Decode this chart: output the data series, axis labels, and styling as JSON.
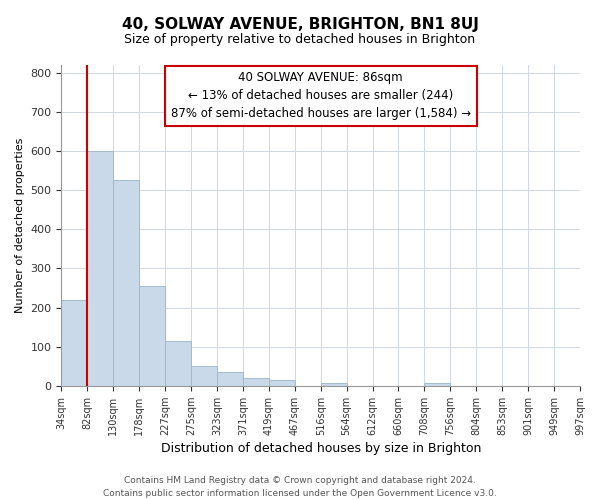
{
  "title": "40, SOLWAY AVENUE, BRIGHTON, BN1 8UJ",
  "subtitle": "Size of property relative to detached houses in Brighton",
  "xlabel": "Distribution of detached houses by size in Brighton",
  "ylabel": "Number of detached properties",
  "bins": [
    "34sqm",
    "82sqm",
    "130sqm",
    "178sqm",
    "227sqm",
    "275sqm",
    "323sqm",
    "371sqm",
    "419sqm",
    "467sqm",
    "516sqm",
    "564sqm",
    "612sqm",
    "660sqm",
    "708sqm",
    "756sqm",
    "804sqm",
    "853sqm",
    "901sqm",
    "949sqm",
    "997sqm"
  ],
  "bar_heights": [
    220,
    600,
    525,
    255,
    115,
    50,
    35,
    20,
    15,
    0,
    8,
    0,
    0,
    0,
    8,
    0,
    0,
    0,
    0,
    0
  ],
  "bar_color": "#c9d9ea",
  "bar_edge_color": "#9ab5cb",
  "vline_color": "#cc0000",
  "ylim": [
    0,
    820
  ],
  "yticks": [
    0,
    100,
    200,
    300,
    400,
    500,
    600,
    700,
    800
  ],
  "ann_line1": "40 SOLWAY AVENUE: 86sqm",
  "ann_line2": "← 13% of detached houses are smaller (244)",
  "ann_line3": "87% of semi-detached houses are larger (1,584) →",
  "footer_line1": "Contains HM Land Registry data © Crown copyright and database right 2024.",
  "footer_line2": "Contains public sector information licensed under the Open Government Licence v3.0."
}
